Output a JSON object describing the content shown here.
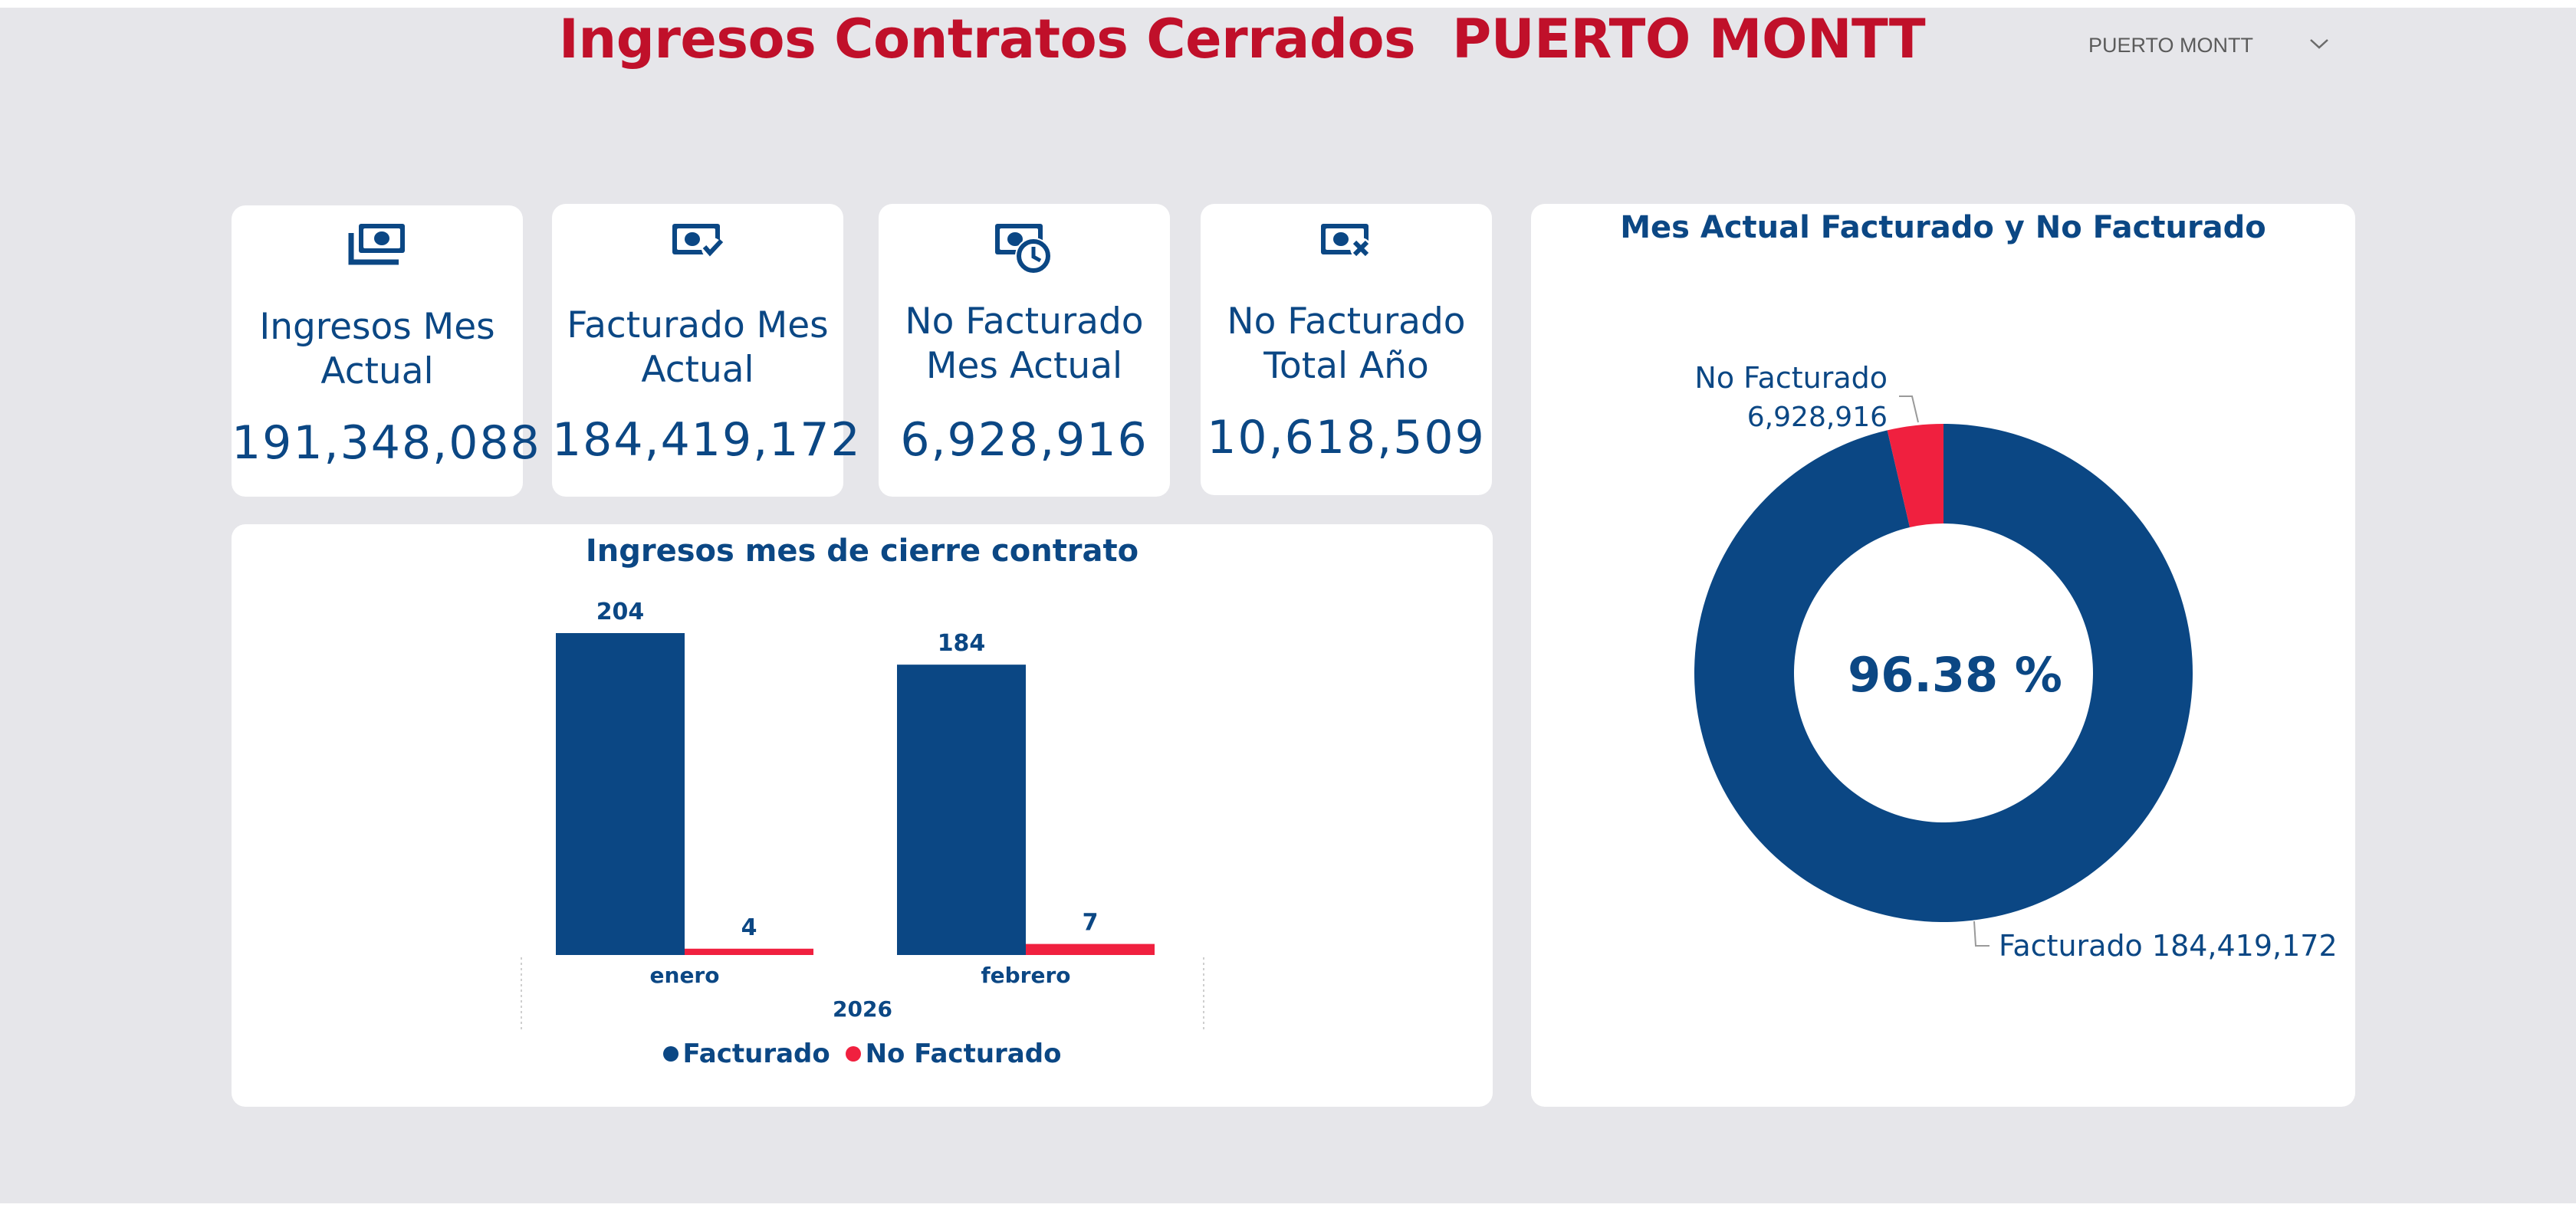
{
  "page": {
    "title": "Ingresos Contratos Cerrados  PUERTO MONTT"
  },
  "slicer": {
    "selected": "PUERTO MONTT",
    "icon": "chevron-down-icon"
  },
  "colors": {
    "navy": "#0b4784",
    "red": "#f0203f",
    "title_red": "#c0102a",
    "background": "#e6e6ea"
  },
  "kpis": [
    {
      "icon": "money-stack-icon",
      "label_line1": "Ingresos Mes",
      "label_line2": "Actual",
      "value": "191,348,088"
    },
    {
      "icon": "money-check-icon",
      "label_line1": "Facturado Mes",
      "label_line2": "Actual",
      "value": "184,419,172"
    },
    {
      "icon": "money-clock-icon",
      "label_line1": "No Facturado",
      "label_line2": "Mes Actual",
      "value": "6,928,916"
    },
    {
      "icon": "money-x-icon",
      "label_line1": "No Facturado",
      "label_line2": "Total Año",
      "value": "10,618,509"
    }
  ],
  "chart_data": [
    {
      "type": "bar",
      "title": "Ingresos mes de cierre contrato",
      "categories": [
        "enero",
        "febrero"
      ],
      "year": "2026",
      "series": [
        {
          "name": "Facturado",
          "values": [
            204,
            184
          ],
          "labels": [
            "204",
            "184"
          ],
          "color": "#0b4784"
        },
        {
          "name": "No Facturado",
          "values": [
            4,
            7
          ],
          "labels": [
            "4",
            "7"
          ],
          "color": "#f0203f"
        }
      ],
      "ylim": [
        0,
        204
      ]
    },
    {
      "type": "pie",
      "title": "Mes Actual Facturado y No Facturado",
      "donut": true,
      "center_label": "96.38 %",
      "slices": [
        {
          "name": "Facturado",
          "value": 184419172,
          "label_name": "Facturado",
          "label_value": "184,419,172",
          "color": "#0b4784"
        },
        {
          "name": "No Facturado",
          "value": 6928916,
          "label_name": "No Facturado",
          "label_value": "6,928,916",
          "color": "#f0203f"
        }
      ]
    }
  ]
}
